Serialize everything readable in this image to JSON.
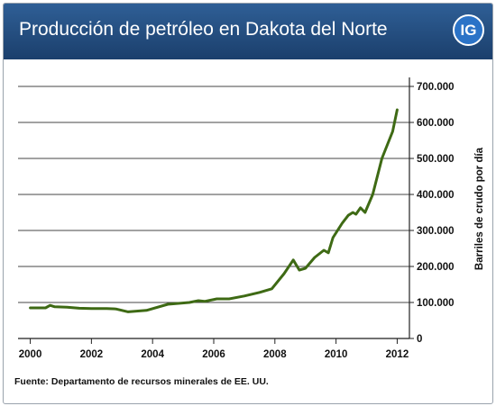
{
  "header": {
    "title": "Producción de petróleo en Dakota del Norte",
    "logo_text": "IG"
  },
  "source": "Fuente: Departamento de recursos minerales de EE. UU.",
  "colors": {
    "header_top": "#2f5f96",
    "header_bottom": "#1b3f6c",
    "logo": "#2b73c7",
    "line": "#3e6a14"
  },
  "chart_data": {
    "type": "line",
    "title": "",
    "xlabel": "",
    "ylabel": "Barriles de crudo por día",
    "xlim": [
      1999.6,
      2012.4
    ],
    "ylim": [
      0,
      700000
    ],
    "y_ticks": [
      0,
      100000,
      200000,
      300000,
      400000,
      500000,
      600000,
      700000
    ],
    "y_tick_labels": [
      "0",
      "100.000",
      "200.000",
      "300.000",
      "400.000",
      "500.000",
      "600.000",
      "700.000"
    ],
    "x_ticks": [
      2000,
      2002,
      2004,
      2006,
      2008,
      2010,
      2012
    ],
    "x_tick_labels": [
      "2000",
      "2002",
      "2004",
      "2006",
      "2008",
      "2010",
      "2012"
    ],
    "grid": true,
    "y_axis_position": "right",
    "series": [
      {
        "x": [
          2000.0,
          2000.5,
          2000.65,
          2000.8,
          2001.2,
          2001.6,
          2002.0,
          2002.5,
          2002.8,
          2003.2,
          2003.8,
          2004.5,
          2005.2,
          2005.5,
          2005.7,
          2006.1,
          2006.5,
          2007.0,
          2007.5,
          2007.9,
          2008.3,
          2008.6,
          2008.8,
          2009.0,
          2009.3,
          2009.6,
          2009.75,
          2009.9,
          2010.2,
          2010.4,
          2010.55,
          2010.65,
          2010.8,
          2010.95,
          2011.2,
          2011.5,
          2011.85,
          2012.0
        ],
        "y": [
          85000,
          85000,
          92000,
          88000,
          87000,
          84000,
          83000,
          83000,
          82000,
          74000,
          78000,
          95000,
          100000,
          105000,
          103000,
          110000,
          110000,
          118000,
          128000,
          138000,
          180000,
          218000,
          190000,
          195000,
          225000,
          245000,
          238000,
          280000,
          320000,
          342000,
          350000,
          345000,
          363000,
          350000,
          400000,
          500000,
          575000,
          635000
        ]
      }
    ]
  }
}
